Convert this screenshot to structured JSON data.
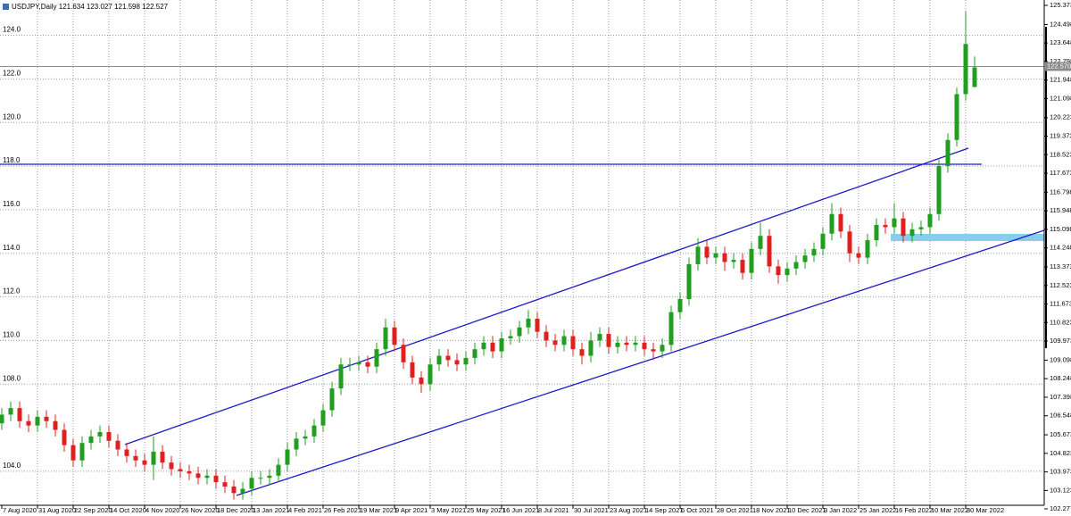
{
  "chart_data": {
    "type": "candlestick",
    "title": "USDJPY,Daily  121.634 123.027 121.598 122.527",
    "up_color": "#1f9e1f",
    "down_color": "#e0201e",
    "xlim": [
      -0.8,
      467.2
    ],
    "ylim": [
      102.277,
      125.373
    ],
    "grid": true,
    "xticks": [
      {
        "value": 0,
        "label": "7 Aug 2020"
      },
      {
        "value": 16,
        "label": "31 Aug 2020"
      },
      {
        "value": 32,
        "label": "22 Sep 2020"
      },
      {
        "value": 48,
        "label": "14 Oct 2020"
      },
      {
        "value": 64,
        "label": "4 Nov 2020"
      },
      {
        "value": 80,
        "label": "26 Nov 2020"
      },
      {
        "value": 96,
        "label": "18 Dec 2020"
      },
      {
        "value": 112,
        "label": "13 Jan 2021"
      },
      {
        "value": 128,
        "label": "4 Feb 2021"
      },
      {
        "value": 144,
        "label": "26 Feb 2021"
      },
      {
        "value": 160,
        "label": "19 Mar 2021"
      },
      {
        "value": 176,
        "label": "9 Apr 2021"
      },
      {
        "value": 192,
        "label": "3 May 2021"
      },
      {
        "value": 208,
        "label": "25 May 2021"
      },
      {
        "value": 224,
        "label": "16 Jun 2021"
      },
      {
        "value": 240,
        "label": "8 Jul 2021"
      },
      {
        "value": 256,
        "label": "30 Jul 2021"
      },
      {
        "value": 272,
        "label": "23 Aug 2021"
      },
      {
        "value": 288,
        "label": "14 Sep 2021"
      },
      {
        "value": 304,
        "label": "6 Oct 2021"
      },
      {
        "value": 320,
        "label": "28 Oct 2021"
      },
      {
        "value": 336,
        "label": "18 Nov 2021"
      },
      {
        "value": 352,
        "label": "10 Dec 2021"
      },
      {
        "value": 368,
        "label": "3 Jan 2022"
      },
      {
        "value": 384,
        "label": "25 Jan 2022"
      },
      {
        "value": 400,
        "label": "16 Feb 2022"
      },
      {
        "value": 416,
        "label": "10 Mar 2022"
      },
      {
        "value": 432,
        "label": "30 Mar 2022"
      }
    ],
    "yticks": [
      {
        "value": 124,
        "label": "124.0"
      },
      {
        "value": 122,
        "label": "122.0"
      },
      {
        "value": 120,
        "label": "120.0"
      },
      {
        "value": 118,
        "label": "118.0"
      },
      {
        "value": 116,
        "label": "116.0"
      },
      {
        "value": 114,
        "label": "114.0"
      },
      {
        "value": 112,
        "label": "112.0"
      },
      {
        "value": 110,
        "label": "110.0"
      },
      {
        "value": 108,
        "label": "108.0"
      },
      {
        "value": 104,
        "label": "104.0"
      }
    ],
    "price_scale_ticks": [
      125.373,
      124.498,
      123.648,
      122.798,
      121.948,
      121.098,
      120.223,
      119.373,
      118.523,
      117.673,
      116.798,
      115.948,
      115.098,
      114.248,
      113.373,
      112.523,
      111.673,
      110.823,
      109.973,
      109.098,
      108.248,
      107.398,
      106.548,
      105.673,
      104.823,
      103.973,
      103.123,
      102.277
    ],
    "current_price": {
      "value": 122.57,
      "label": "122.570"
    },
    "x": [
      0,
      4,
      8,
      12,
      16,
      20,
      24,
      28,
      32,
      36,
      40,
      44,
      48,
      52,
      56,
      60,
      64,
      68,
      72,
      76,
      80,
      84,
      88,
      92,
      96,
      100,
      104,
      108,
      112,
      116,
      120,
      124,
      128,
      132,
      136,
      140,
      144,
      148,
      152,
      156,
      160,
      164,
      168,
      172,
      176,
      180,
      184,
      188,
      192,
      196,
      200,
      204,
      208,
      212,
      216,
      220,
      224,
      228,
      232,
      236,
      240,
      244,
      248,
      252,
      256,
      260,
      264,
      268,
      272,
      276,
      280,
      284,
      288,
      292,
      296,
      300,
      304,
      308,
      312,
      316,
      320,
      324,
      328,
      332,
      336,
      340,
      344,
      348,
      352,
      356,
      360,
      364,
      368,
      372,
      376,
      380,
      384,
      388,
      392,
      396,
      400,
      404,
      408,
      412,
      416,
      420,
      424,
      428,
      432,
      436
    ],
    "open": [
      106.2,
      106.6,
      106.9,
      106.3,
      106.1,
      106.5,
      106.3,
      105.9,
      105.2,
      104.5,
      105.3,
      105.6,
      105.8,
      105.4,
      105.0,
      104.7,
      104.5,
      104.3,
      104.9,
      104.4,
      104.1,
      104.0,
      103.9,
      103.7,
      103.8,
      103.5,
      103.3,
      103.0,
      103.2,
      103.7,
      103.7,
      103.8,
      104.3,
      105.0,
      105.5,
      105.6,
      106.1,
      106.8,
      107.8,
      108.9,
      108.9,
      109.0,
      108.8,
      109.6,
      110.6,
      109.8,
      109.0,
      108.3,
      108.0,
      108.9,
      109.3,
      109.1,
      108.9,
      109.2,
      109.6,
      109.9,
      109.5,
      110.1,
      110.2,
      110.6,
      111.0,
      110.4,
      110.0,
      109.8,
      110.2,
      109.6,
      109.3,
      110.0,
      110.3,
      109.7,
      109.9,
      109.8,
      109.9,
      109.6,
      109.5,
      109.8,
      111.3,
      111.9,
      113.5,
      114.3,
      113.8,
      114.0,
      113.6,
      113.7,
      113.1,
      114.2,
      114.8,
      113.4,
      113.0,
      113.3,
      113.6,
      113.9,
      114.2,
      114.9,
      115.8,
      115.0,
      114.0,
      113.8,
      114.6,
      115.3,
      115.2,
      115.6,
      114.8,
      115.1,
      115.2,
      115.8,
      118.0,
      119.2,
      121.3,
      121.634
    ],
    "high": [
      106.9,
      107.2,
      107.2,
      106.6,
      106.8,
      106.8,
      106.6,
      106.2,
      105.5,
      105.6,
      105.9,
      106.1,
      106.1,
      105.7,
      105.3,
      105.0,
      104.8,
      105.6,
      105.2,
      104.7,
      104.4,
      104.3,
      104.2,
      104.1,
      104.1,
      103.8,
      103.6,
      103.5,
      104.0,
      104.0,
      104.1,
      104.6,
      105.3,
      105.8,
      105.9,
      106.4,
      107.1,
      108.1,
      109.2,
      109.2,
      109.3,
      109.3,
      109.9,
      111.0,
      110.9,
      110.1,
      109.3,
      108.6,
      109.2,
      109.6,
      109.6,
      109.4,
      109.5,
      109.9,
      110.2,
      110.2,
      110.4,
      110.5,
      110.9,
      111.4,
      111.3,
      110.7,
      110.3,
      110.5,
      110.5,
      109.9,
      110.4,
      110.6,
      110.6,
      110.2,
      110.2,
      110.2,
      110.2,
      109.9,
      110.1,
      111.6,
      112.2,
      113.8,
      114.7,
      114.6,
      114.3,
      114.3,
      114.0,
      114.0,
      114.5,
      115.4,
      115.1,
      113.7,
      113.6,
      113.9,
      114.2,
      114.5,
      115.2,
      116.3,
      116.1,
      115.3,
      114.3,
      114.9,
      115.6,
      115.6,
      116.3,
      115.9,
      115.4,
      115.5,
      116.1,
      118.3,
      119.5,
      121.6,
      125.1,
      123.027
    ],
    "low": [
      105.9,
      106.3,
      106.0,
      105.8,
      105.8,
      106.0,
      105.6,
      104.9,
      104.2,
      104.2,
      105.0,
      105.3,
      105.1,
      104.7,
      104.4,
      104.2,
      104.0,
      103.6,
      104.1,
      103.8,
      103.7,
      103.6,
      103.4,
      103.4,
      103.2,
      103.0,
      102.7,
      102.7,
      102.9,
      103.4,
      103.4,
      103.5,
      104.0,
      104.7,
      105.2,
      105.3,
      105.8,
      106.5,
      107.5,
      108.6,
      108.6,
      108.5,
      108.5,
      109.3,
      109.5,
      108.7,
      108.0,
      107.6,
      107.7,
      108.6,
      108.8,
      108.6,
      108.6,
      108.9,
      109.3,
      109.2,
      109.2,
      109.8,
      109.9,
      110.3,
      110.1,
      109.7,
      109.5,
      109.5,
      109.3,
      108.9,
      109.0,
      109.7,
      109.4,
      109.4,
      109.5,
      109.5,
      109.3,
      109.1,
      109.2,
      109.5,
      111.0,
      111.6,
      113.2,
      113.5,
      113.5,
      113.2,
      113.3,
      112.8,
      112.8,
      113.9,
      113.1,
      112.6,
      112.7,
      113.0,
      113.3,
      113.6,
      113.9,
      114.6,
      114.7,
      113.6,
      113.5,
      113.5,
      114.3,
      114.9,
      114.9,
      114.5,
      114.5,
      114.8,
      114.9,
      115.5,
      117.7,
      118.9,
      121.0,
      121.598
    ],
    "close": [
      106.6,
      106.9,
      106.3,
      106.1,
      106.5,
      106.3,
      105.9,
      105.2,
      104.5,
      105.3,
      105.6,
      105.8,
      105.4,
      105.0,
      104.7,
      104.5,
      104.3,
      104.9,
      104.4,
      104.1,
      104.0,
      103.9,
      103.7,
      103.8,
      103.5,
      103.3,
      103.0,
      103.2,
      103.7,
      103.7,
      103.8,
      104.3,
      105.0,
      105.5,
      105.6,
      106.1,
      106.8,
      107.8,
      108.9,
      108.9,
      109.0,
      108.8,
      109.6,
      110.6,
      109.8,
      109.0,
      108.3,
      108.0,
      108.9,
      109.3,
      109.1,
      108.9,
      109.2,
      109.6,
      109.9,
      109.5,
      110.1,
      110.2,
      110.6,
      111.0,
      110.4,
      110.0,
      109.8,
      110.2,
      109.6,
      109.3,
      110.0,
      110.3,
      109.7,
      109.9,
      109.8,
      109.9,
      109.6,
      109.5,
      109.8,
      111.3,
      111.9,
      113.5,
      114.3,
      113.8,
      114.0,
      113.6,
      113.7,
      113.1,
      114.2,
      114.8,
      113.4,
      113.0,
      113.3,
      113.6,
      113.9,
      114.2,
      114.9,
      115.8,
      115.0,
      114.0,
      113.8,
      114.6,
      115.3,
      115.2,
      115.6,
      114.8,
      115.1,
      115.2,
      115.8,
      118.0,
      119.2,
      121.3,
      123.6,
      122.527
    ]
  }
}
